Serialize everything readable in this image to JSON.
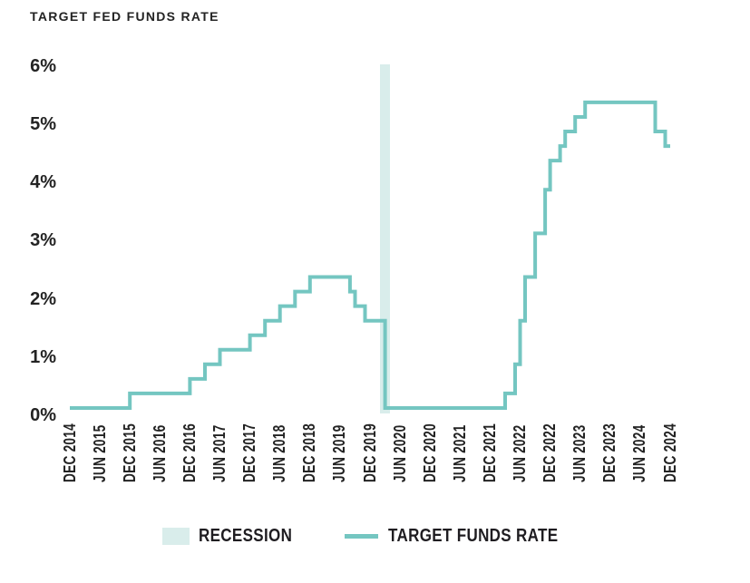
{
  "chart_data": {
    "type": "line",
    "style": "step",
    "title": "TARGET FED FUNDS RATE",
    "ylabel": "",
    "xlabel": "",
    "ylim": [
      0,
      6
    ],
    "y_ticks": [
      "0%",
      "1%",
      "2%",
      "3%",
      "4%",
      "5%",
      "6%"
    ],
    "x_ticks": [
      "DEC 2014",
      "JUN 2015",
      "DEC 2015",
      "JUN 2016",
      "DEC 2016",
      "JUN 2017",
      "DEC 2017",
      "JUN 2018",
      "DEC 2018",
      "JUN 2019",
      "DEC 2019",
      "JUN 2020",
      "DEC 2020",
      "JUN 2021",
      "DEC 2021",
      "JUN 2022",
      "DEC 2022",
      "JUN 2023",
      "DEC 2023",
      "JUN 2024",
      "DEC 2024"
    ],
    "x_tick_interval_months": 6,
    "grid": false,
    "series": [
      {
        "name": "TARGET FUNDS RATE",
        "color": "#74c6c1",
        "end_month": 120,
        "steps": [
          {
            "date": "DEC 2014",
            "month": 0,
            "rate": 0.125
          },
          {
            "date": "DEC 2015",
            "month": 12,
            "rate": 0.375
          },
          {
            "date": "DEC 2016",
            "month": 24,
            "rate": 0.625
          },
          {
            "date": "MAR 2017",
            "month": 27,
            "rate": 0.875
          },
          {
            "date": "JUN 2017",
            "month": 30,
            "rate": 1.125
          },
          {
            "date": "DEC 2017",
            "month": 36,
            "rate": 1.375
          },
          {
            "date": "MAR 2018",
            "month": 39,
            "rate": 1.625
          },
          {
            "date": "JUN 2018",
            "month": 42,
            "rate": 1.875
          },
          {
            "date": "SEP 2018",
            "month": 45,
            "rate": 2.125
          },
          {
            "date": "DEC 2018",
            "month": 48,
            "rate": 2.375
          },
          {
            "date": "AUG 2019",
            "month": 56,
            "rate": 2.125
          },
          {
            "date": "SEP 2019",
            "month": 57,
            "rate": 1.875
          },
          {
            "date": "NOV 2019",
            "month": 59,
            "rate": 1.625
          },
          {
            "date": "MAR 2020",
            "month": 63,
            "rate": 0.125
          },
          {
            "date": "MAR 2022",
            "month": 87,
            "rate": 0.375
          },
          {
            "date": "MAY 2022",
            "month": 89,
            "rate": 0.875
          },
          {
            "date": "JUN 2022",
            "month": 90,
            "rate": 1.625
          },
          {
            "date": "JUL 2022",
            "month": 91,
            "rate": 2.375
          },
          {
            "date": "SEP 2022",
            "month": 93,
            "rate": 3.125
          },
          {
            "date": "NOV 2022",
            "month": 95,
            "rate": 3.875
          },
          {
            "date": "DEC 2022",
            "month": 96,
            "rate": 4.375
          },
          {
            "date": "FEB 2023",
            "month": 98,
            "rate": 4.625
          },
          {
            "date": "MAR 2023",
            "month": 99,
            "rate": 4.875
          },
          {
            "date": "MAY 2023",
            "month": 101,
            "rate": 5.125
          },
          {
            "date": "JUL 2023",
            "month": 103,
            "rate": 5.375
          },
          {
            "date": "SEP 2024",
            "month": 117,
            "rate": 4.875
          },
          {
            "date": "NOV 2024",
            "month": 119,
            "rate": 4.625
          }
        ]
      }
    ],
    "recession_bands": [
      {
        "start_month": 62,
        "end_month": 64
      }
    ],
    "legend": [
      {
        "label": "RECESSION",
        "swatch": "band"
      },
      {
        "label": "TARGET FUNDS RATE",
        "swatch": "line"
      }
    ],
    "colors": {
      "line": "#74c6c1",
      "recession_band": "#d9edeb",
      "text": "#232323"
    }
  }
}
